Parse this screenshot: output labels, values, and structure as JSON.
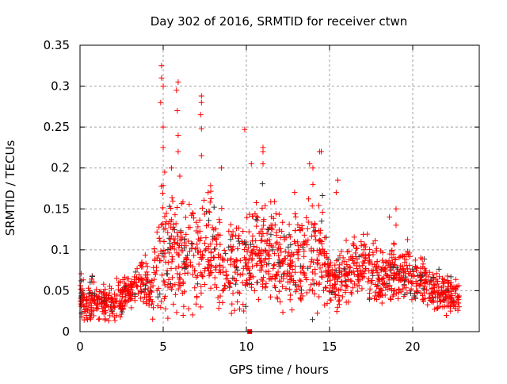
{
  "chart_data": {
    "type": "scatter",
    "title": "Day 302 of 2016, SRMTID for receiver ctwn",
    "xlabel": "GPS time / hours",
    "ylabel": "SRMTID / TECUs",
    "xlim": [
      0,
      24
    ],
    "ylim": [
      0,
      0.35
    ],
    "xticks": [
      0,
      5,
      10,
      15,
      20
    ],
    "xtick_labels": [
      "0",
      "5",
      "10",
      "15",
      "20"
    ],
    "yticks": [
      0,
      0.05,
      0.1,
      0.15,
      0.2,
      0.25,
      0.3,
      0.35
    ],
    "ytick_labels": [
      "0",
      "0.05",
      "0.1",
      "0.15",
      "0.2",
      "0.25",
      "0.3",
      "0.35"
    ],
    "grid": true,
    "legend": "none",
    "x_extent": [
      0,
      22.8
    ],
    "series": [
      {
        "name": "main",
        "marker": "plus",
        "color": "#ff0000",
        "trend_hourly": {
          "x": [
            0,
            0.5,
            1,
            1.5,
            2,
            2.5,
            3,
            3.5,
            4,
            4.3,
            4.6,
            5,
            5.5,
            6,
            6.5,
            7,
            7.5,
            8,
            8.5,
            9,
            9.5,
            10,
            10.5,
            11,
            11.5,
            12,
            12.5,
            13,
            13.5,
            14,
            14.5,
            15,
            15.5,
            16,
            16.5,
            17,
            17.5,
            18,
            18.5,
            19,
            19.5,
            20,
            20.5,
            21,
            21.5,
            22,
            22.5,
            22.8
          ],
          "median": [
            0.04,
            0.04,
            0.038,
            0.035,
            0.035,
            0.04,
            0.05,
            0.06,
            0.06,
            0.04,
            0.09,
            0.11,
            0.1,
            0.09,
            0.08,
            0.09,
            0.1,
            0.1,
            0.09,
            0.085,
            0.08,
            0.08,
            0.1,
            0.1,
            0.1,
            0.09,
            0.08,
            0.085,
            0.09,
            0.1,
            0.1,
            0.06,
            0.06,
            0.07,
            0.075,
            0.08,
            0.075,
            0.065,
            0.065,
            0.07,
            0.07,
            0.065,
            0.065,
            0.06,
            0.05,
            0.045,
            0.045,
            0.045
          ],
          "spread": [
            0.02,
            0.025,
            0.02,
            0.018,
            0.018,
            0.02,
            0.015,
            0.02,
            0.02,
            0.02,
            0.05,
            0.06,
            0.06,
            0.05,
            0.04,
            0.05,
            0.05,
            0.045,
            0.045,
            0.04,
            0.04,
            0.04,
            0.045,
            0.045,
            0.045,
            0.04,
            0.035,
            0.04,
            0.045,
            0.05,
            0.05,
            0.02,
            0.025,
            0.025,
            0.03,
            0.03,
            0.03,
            0.025,
            0.025,
            0.025,
            0.025,
            0.025,
            0.02,
            0.02,
            0.018,
            0.018,
            0.015,
            0.015
          ]
        },
        "outliers": [
          [
            4.9,
            0.325
          ],
          [
            4.9,
            0.31
          ],
          [
            5.0,
            0.3
          ],
          [
            4.85,
            0.28
          ],
          [
            5.0,
            0.25
          ],
          [
            5.0,
            0.225
          ],
          [
            5.9,
            0.305
          ],
          [
            5.8,
            0.295
          ],
          [
            5.85,
            0.27
          ],
          [
            5.9,
            0.24
          ],
          [
            5.9,
            0.22
          ],
          [
            7.3,
            0.288
          ],
          [
            7.3,
            0.28
          ],
          [
            7.25,
            0.265
          ],
          [
            7.3,
            0.248
          ],
          [
            7.3,
            0.215
          ],
          [
            9.9,
            0.247
          ],
          [
            8.5,
            0.2
          ],
          [
            11.0,
            0.225
          ],
          [
            11.0,
            0.22
          ],
          [
            10.3,
            0.205
          ],
          [
            11.0,
            0.205
          ],
          [
            13.8,
            0.205
          ],
          [
            14.0,
            0.2
          ],
          [
            14.4,
            0.22
          ],
          [
            14.5,
            0.22
          ],
          [
            14.0,
            0.18
          ],
          [
            15.5,
            0.185
          ],
          [
            15.4,
            0.17
          ],
          [
            19.0,
            0.15
          ],
          [
            18.6,
            0.14
          ],
          [
            19.0,
            0.13
          ],
          [
            5.5,
            0.2
          ],
          [
            6.0,
            0.19
          ],
          [
            7.7,
            0.17
          ],
          [
            12.9,
            0.17
          ]
        ]
      },
      {
        "name": "secondary",
        "marker": "plus",
        "color": "#333333",
        "fraction_of_points": 0.08
      },
      {
        "name": "zero-marker",
        "marker": "square",
        "color": "#ff0000",
        "points": [
          [
            10.2,
            0
          ]
        ]
      }
    ]
  }
}
